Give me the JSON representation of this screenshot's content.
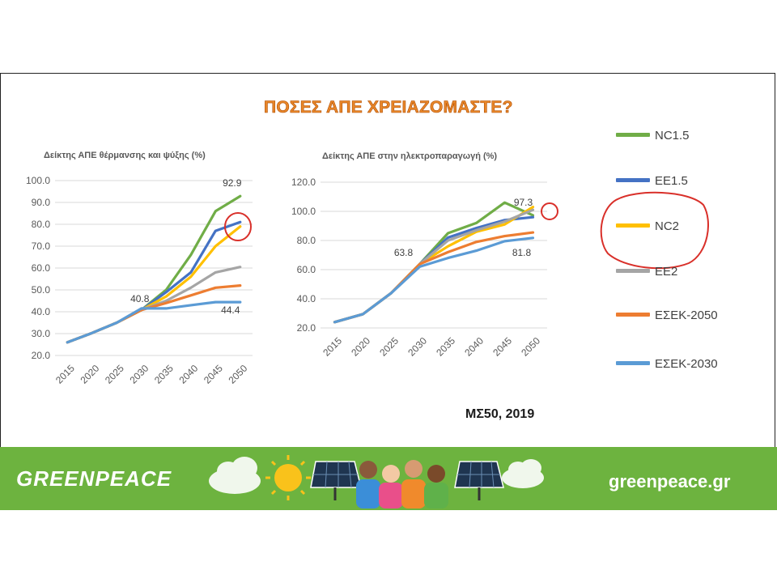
{
  "title": "ΠΟΣΕΣ ΑΠΕ ΧΡΕΙΑΖΟΜΑΣΤΕ?",
  "source_note": "ΜΣ50, 2019",
  "footer": {
    "brand": "GREENPEACE",
    "url": "greenpeace.gr"
  },
  "colors": {
    "NC1.5": "#70ad47",
    "EE1.5": "#4472c4",
    "NC2": "#ffc000",
    "EE2": "#a5a5a5",
    "ΕΣΕΚ-2050": "#ed7d31",
    "ΕΣΕΚ-2030": "#5b9bd5",
    "title": "#e8872a",
    "footer_green": "#6db33f",
    "annotation": "#d9302a"
  },
  "legend": [
    {
      "label": "NC1.5",
      "color": "#70ad47"
    },
    {
      "label": "EE1.5",
      "color": "#4472c4"
    },
    {
      "label": "NC2",
      "color": "#ffc000"
    },
    {
      "label": "EE2",
      "color": "#a5a5a5"
    },
    {
      "label": "ΕΣΕΚ-2050",
      "color": "#ed7d31"
    },
    {
      "label": "ΕΣΕΚ-2030",
      "color": "#5b9bd5"
    }
  ],
  "footer_icons": [
    "cloud-icon",
    "sun-icon",
    "solar-panel-icon",
    "people-group-icon",
    "solar-panel-icon",
    "cloud-icon"
  ],
  "chart_data": [
    {
      "type": "line",
      "title": "Δείκτης ΑΠΕ θέρμανσης και ψύξης (%)",
      "x": [
        "2015",
        "2020",
        "2025",
        "2030",
        "2035",
        "2040",
        "2045",
        "2050"
      ],
      "ylim": [
        20,
        100
      ],
      "yticks": [
        "20.0",
        "30.0",
        "40.0",
        "50.0",
        "60.0",
        "70.0",
        "80.0",
        "90.0",
        "100.0"
      ],
      "grid": true,
      "legend": "right",
      "series": [
        {
          "name": "NC1.5",
          "color": "#70ad47",
          "values": [
            26,
            30.3,
            35,
            40.8,
            50,
            66,
            86,
            92.9
          ]
        },
        {
          "name": "EE1.5",
          "color": "#4472c4",
          "values": [
            26,
            30.3,
            35,
            40.8,
            49,
            58,
            77,
            81
          ]
        },
        {
          "name": "NC2",
          "color": "#ffc000",
          "values": [
            26,
            30.3,
            35,
            40.8,
            47,
            56,
            70,
            79
          ]
        },
        {
          "name": "EE2",
          "color": "#a5a5a5",
          "values": [
            26,
            30.3,
            35,
            40.8,
            45,
            51,
            58,
            60.5
          ]
        },
        {
          "name": "ΕΣΕΚ-2050",
          "color": "#ed7d31",
          "values": [
            26,
            30.3,
            35,
            40.8,
            44,
            47.5,
            51,
            52
          ]
        },
        {
          "name": "ΕΣΕΚ-2030",
          "color": "#5b9bd5",
          "values": [
            26,
            30.3,
            35,
            41.5,
            41.5,
            43,
            44.4,
            44.4
          ]
        }
      ],
      "annotations": [
        {
          "text": "40.8",
          "x": "2030",
          "y": 40.8
        },
        {
          "text": "92.9",
          "x": "2050",
          "y": 92.9
        },
        {
          "text": "44.4",
          "x": "2050",
          "y": 44.4
        }
      ]
    },
    {
      "type": "line",
      "title": "Δείκτης ΑΠΕ στην ηλεκτροπαραγωγή (%)",
      "x": [
        "2015",
        "2020",
        "2025",
        "2030",
        "2035",
        "2040",
        "2045",
        "2050"
      ],
      "ylim": [
        20,
        120
      ],
      "yticks": [
        "20.0",
        "40.0",
        "60.0",
        "80.0",
        "100.0",
        "120.0"
      ],
      "grid": true,
      "legend": "right",
      "series": [
        {
          "name": "NC1.5",
          "color": "#70ad47",
          "values": [
            24,
            29.5,
            44,
            63.8,
            85,
            92,
            106,
            97.3
          ]
        },
        {
          "name": "EE1.5",
          "color": "#4472c4",
          "values": [
            24,
            29.5,
            44,
            63.8,
            82,
            88.5,
            94,
            96
          ]
        },
        {
          "name": "NC2",
          "color": "#ffc000",
          "values": [
            24,
            29.5,
            44,
            63.8,
            76,
            86,
            91,
            103
          ]
        },
        {
          "name": "EE2",
          "color": "#a5a5a5",
          "values": [
            24,
            29.5,
            44,
            63.8,
            80,
            87,
            93,
            101
          ]
        },
        {
          "name": "ΕΣΕΚ-2050",
          "color": "#ed7d31",
          "values": [
            24,
            29.5,
            44,
            63.8,
            72,
            79,
            83,
            85.5
          ]
        },
        {
          "name": "ΕΣΕΚ-2030",
          "color": "#5b9bd5",
          "values": [
            24,
            29.5,
            44,
            62,
            68,
            73,
            79.5,
            81.8
          ]
        }
      ],
      "annotations": [
        {
          "text": "63.8",
          "x": "2030",
          "y": 63.8
        },
        {
          "text": "97.3",
          "x": "2050",
          "y": 97.3
        },
        {
          "text": "81.8",
          "x": "2050",
          "y": 81.8
        }
      ]
    }
  ]
}
